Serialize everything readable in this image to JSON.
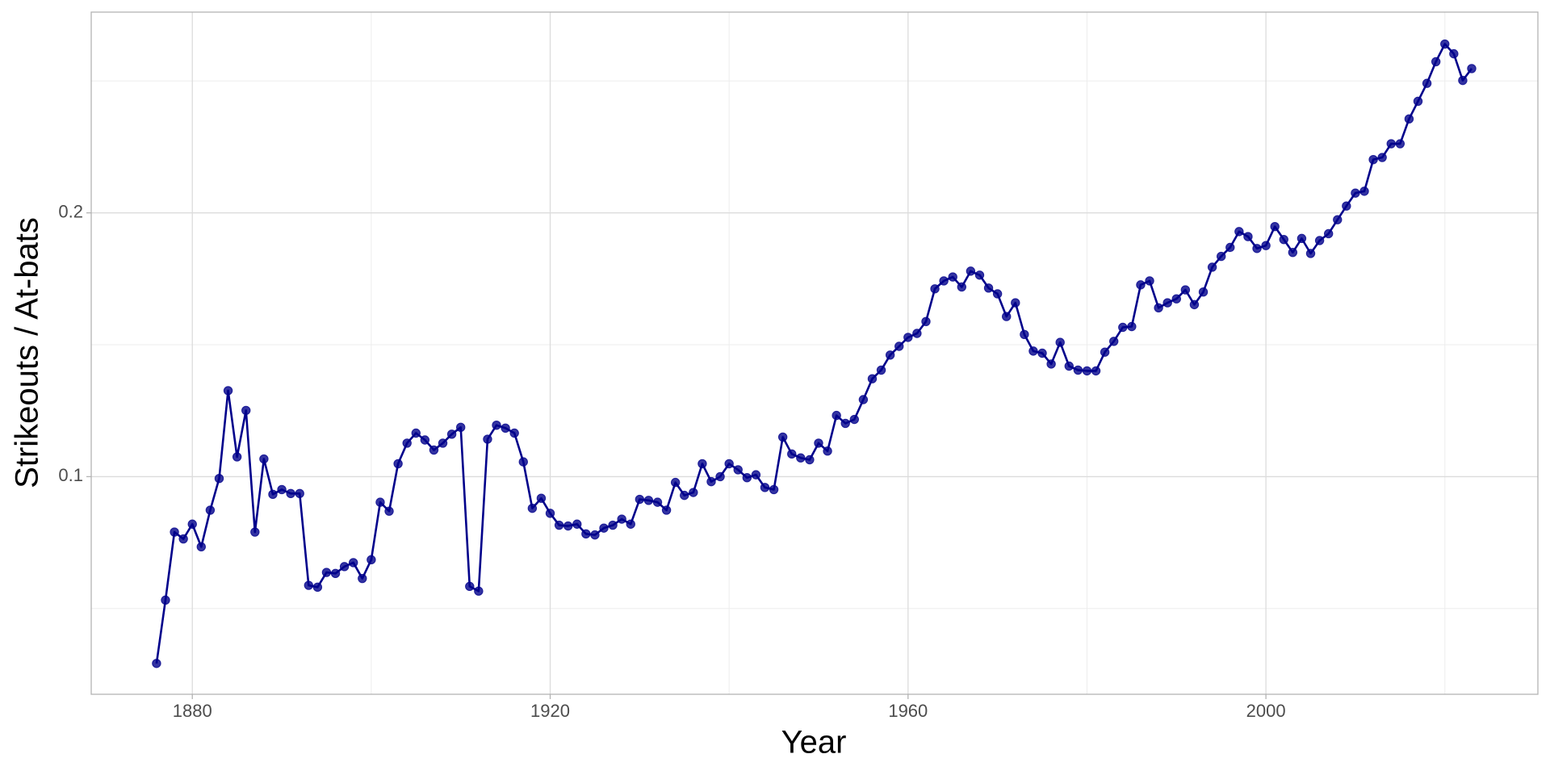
{
  "chart_data": {
    "type": "line",
    "x_label": "Year",
    "y_label": "Strikeouts / At-bats",
    "xlim": [
      1868.7,
      2030.4
    ],
    "ylim": [
      0.0175,
      0.2761
    ],
    "xticks": [
      1880,
      1920,
      1960,
      2000
    ],
    "yticks": [
      0.1,
      0.2
    ],
    "xminor": [
      1900,
      1940,
      1980,
      2020
    ],
    "yminor": [
      0.05,
      0.15,
      0.25
    ],
    "grid": true,
    "color": "#00008b",
    "marker": true,
    "x": [
      1876,
      1877,
      1878,
      1879,
      1880,
      1881,
      1882,
      1883,
      1884,
      1885,
      1886,
      1887,
      1888,
      1889,
      1890,
      1891,
      1892,
      1893,
      1894,
      1895,
      1896,
      1897,
      1898,
      1899,
      1900,
      1901,
      1902,
      1903,
      1904,
      1905,
      1906,
      1907,
      1908,
      1909,
      1910,
      1911,
      1912,
      1913,
      1914,
      1915,
      1916,
      1917,
      1918,
      1919,
      1920,
      1921,
      1922,
      1923,
      1924,
      1925,
      1926,
      1927,
      1928,
      1929,
      1930,
      1931,
      1932,
      1933,
      1934,
      1935,
      1936,
      1937,
      1938,
      1939,
      1940,
      1941,
      1942,
      1943,
      1944,
      1945,
      1946,
      1947,
      1948,
      1949,
      1950,
      1951,
      1952,
      1953,
      1954,
      1955,
      1956,
      1957,
      1958,
      1959,
      1960,
      1961,
      1962,
      1963,
      1964,
      1965,
      1966,
      1967,
      1968,
      1969,
      1970,
      1971,
      1972,
      1973,
      1974,
      1975,
      1976,
      1977,
      1978,
      1979,
      1980,
      1981,
      1982,
      1983,
      1984,
      1985,
      1986,
      1987,
      1988,
      1989,
      1990,
      1991,
      1992,
      1993,
      1994,
      1995,
      1996,
      1997,
      1998,
      1999,
      2000,
      2001,
      2002,
      2003,
      2004,
      2005,
      2006,
      2007,
      2008,
      2009,
      2010,
      2011,
      2012,
      2013,
      2014,
      2015,
      2016,
      2017,
      2018,
      2019,
      2020,
      2021,
      2022,
      2023
    ],
    "values": [
      0.0292,
      0.0532,
      0.079,
      0.0764,
      0.082,
      0.0734,
      0.0873,
      0.0993,
      0.1326,
      0.1075,
      0.1251,
      0.079,
      0.1067,
      0.0933,
      0.0951,
      0.0936,
      0.0936,
      0.0588,
      0.0581,
      0.0637,
      0.0633,
      0.0659,
      0.0674,
      0.0614,
      0.0685,
      0.0903,
      0.0869,
      0.1049,
      0.1127,
      0.1165,
      0.1139,
      0.1101,
      0.1127,
      0.1161,
      0.1187,
      0.0584,
      0.0566,
      0.1142,
      0.1195,
      0.1184,
      0.1165,
      0.1056,
      0.088,
      0.0918,
      0.0861,
      0.0816,
      0.0813,
      0.082,
      0.0783,
      0.0779,
      0.0805,
      0.0816,
      0.0839,
      0.082,
      0.0914,
      0.091,
      0.0903,
      0.0873,
      0.0978,
      0.0929,
      0.094,
      0.1049,
      0.0981,
      0.1,
      0.1049,
      0.1026,
      0.0996,
      0.1007,
      0.0959,
      0.0951,
      0.115,
      0.1086,
      0.1071,
      0.1064,
      0.1127,
      0.1097,
      0.1232,
      0.1202,
      0.1217,
      0.1292,
      0.1371,
      0.1404,
      0.1461,
      0.1494,
      0.1528,
      0.1543,
      0.1588,
      0.1712,
      0.1742,
      0.1757,
      0.1719,
      0.1779,
      0.1764,
      0.1715,
      0.1693,
      0.1607,
      0.1659,
      0.1539,
      0.1476,
      0.1468,
      0.1427,
      0.1509,
      0.1419,
      0.1404,
      0.1401,
      0.1401,
      0.1472,
      0.1513,
      0.1566,
      0.1569,
      0.1727,
      0.1742,
      0.164,
      0.1659,
      0.1674,
      0.1708,
      0.1652,
      0.17,
      0.1794,
      0.1835,
      0.1869,
      0.1929,
      0.191,
      0.1865,
      0.1876,
      0.1948,
      0.1899,
      0.185,
      0.1903,
      0.1846,
      0.1895,
      0.1921,
      0.1974,
      0.2026,
      0.2075,
      0.2082,
      0.2202,
      0.221,
      0.2262,
      0.2262,
      0.2356,
      0.2423,
      0.2491,
      0.2573,
      0.264,
      0.2603,
      0.2502,
      0.2547
    ]
  }
}
